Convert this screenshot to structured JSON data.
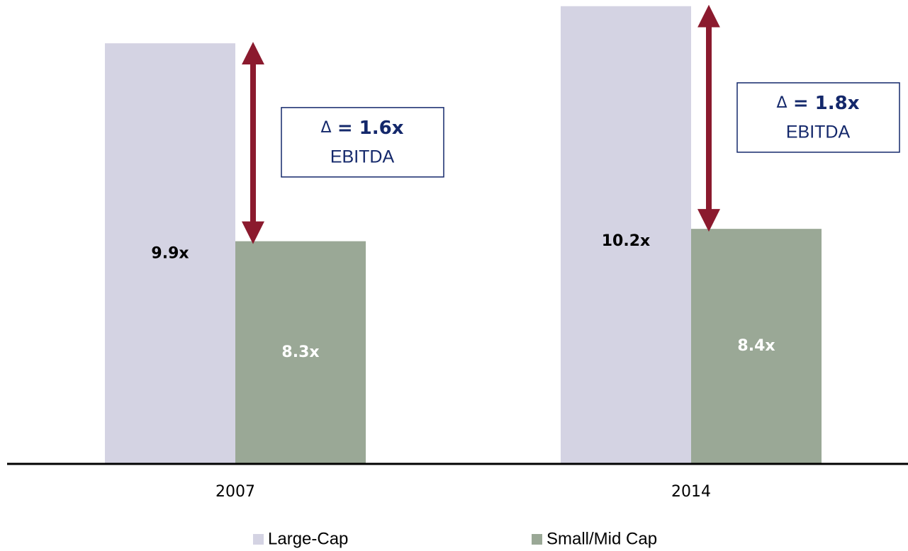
{
  "chart_data": {
    "type": "bar",
    "categories": [
      "2007",
      "2014"
    ],
    "series": [
      {
        "name": "Large-Cap",
        "color": "#d4d3e3",
        "values": [
          9.9,
          10.2
        ],
        "value_labels": [
          "9.9x",
          "10.2x"
        ],
        "label_color": "#000000"
      },
      {
        "name": "Small/Mid Cap",
        "color": "#9aa896",
        "values": [
          8.3,
          8.4
        ],
        "value_labels": [
          "8.3x",
          "8.4x"
        ],
        "label_color": "#ffffff"
      }
    ],
    "ylim": [
      6.5,
      10.25
    ],
    "annotations": [
      {
        "symbol": "Δ",
        "value_text": "= 1.6x",
        "label": "EBITDA"
      },
      {
        "symbol": "Δ",
        "value_text": "= 1.8x",
        "label": "EBITDA"
      }
    ],
    "legend": "bottom"
  }
}
